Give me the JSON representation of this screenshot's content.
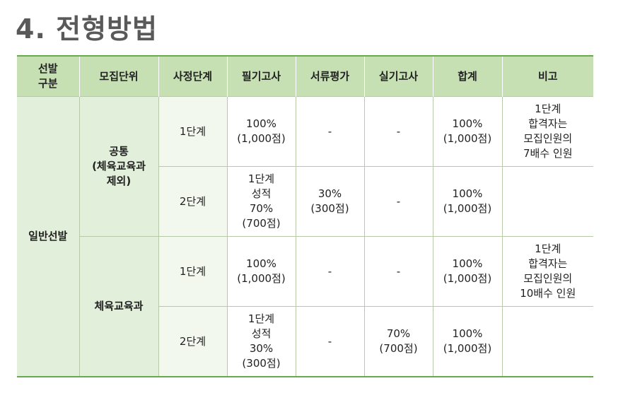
{
  "title": "4. 전형방법",
  "headers": [
    "선발\n구분",
    "모집단위",
    "사정단계",
    "필기고사",
    "서류평가",
    "실기고사",
    "합계",
    "비고"
  ],
  "category": "일반선발",
  "groups": [
    {
      "unit": "공통\n(체육교육과\n제외)",
      "rows": [
        {
          "stage": "1단계",
          "written": "100%\n(1,000점)",
          "document": "-",
          "practical": "-",
          "total": "100%\n(1,000점)",
          "note": "1단계\n합격자는\n모집인원의\n7배수 인원"
        },
        {
          "stage": "2단계",
          "written": "1단계\n성적\n70%\n(700점)",
          "document": "30%\n(300점)",
          "practical": "-",
          "total": "100%\n(1,000점)",
          "note": ""
        }
      ]
    },
    {
      "unit": "체육교육과",
      "rows": [
        {
          "stage": "1단계",
          "written": "100%\n(1,000점)",
          "document": "-",
          "practical": "-",
          "total": "100%\n(1,000점)",
          "note": "1단계\n합격자는\n모집인원의\n10배수 인원"
        },
        {
          "stage": "2단계",
          "written": "1단계\n성적\n30%\n(300점)",
          "document": "-",
          "practical": "70%\n(700점)",
          "total": "100%\n(1,000점)",
          "note": ""
        }
      ]
    }
  ]
}
